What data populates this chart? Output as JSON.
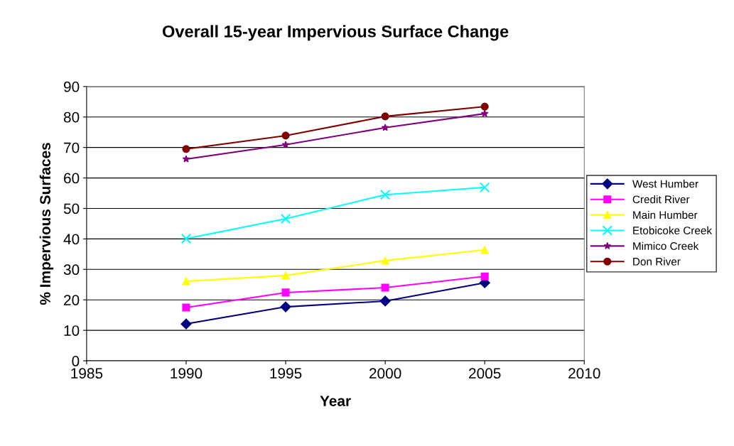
{
  "chart_data": {
    "type": "line",
    "title": "Overall 15-year Impervious Surface Change",
    "xlabel": "Year",
    "ylabel": "% Impervious Surfaces",
    "x": [
      1990,
      1995,
      2000,
      2005
    ],
    "xlim": [
      1985,
      2010
    ],
    "xticks": [
      1985,
      1990,
      1995,
      2000,
      2005,
      2010
    ],
    "ylim": [
      0,
      90
    ],
    "yticks": [
      0,
      10,
      20,
      30,
      40,
      50,
      60,
      70,
      80,
      90
    ],
    "grid": "y",
    "legend": "right",
    "series": [
      {
        "name": "West Humber",
        "color": "#000080",
        "marker": "diamond",
        "values": [
          12.1,
          17.7,
          19.6,
          25.6
        ]
      },
      {
        "name": "Credit River",
        "color": "#ff00ff",
        "marker": "square",
        "values": [
          17.5,
          22.4,
          24.0,
          27.7
        ]
      },
      {
        "name": "Main Humber",
        "color": "#ffff00",
        "marker": "triangle",
        "values": [
          26.1,
          28.0,
          32.9,
          36.4
        ]
      },
      {
        "name": "Etobicoke Creek",
        "color": "#00ffff",
        "marker": "cross",
        "values": [
          40.1,
          46.6,
          54.5,
          56.9
        ]
      },
      {
        "name": "Mimico Creek",
        "color": "#800080",
        "marker": "star",
        "values": [
          66.2,
          70.9,
          76.5,
          81.1
        ]
      },
      {
        "name": "Don River",
        "color": "#800000",
        "marker": "circle",
        "values": [
          69.5,
          73.9,
          80.2,
          83.4
        ]
      }
    ]
  }
}
